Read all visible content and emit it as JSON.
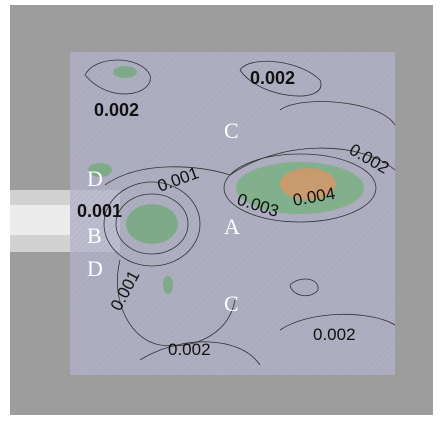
{
  "labels": [
    {
      "text": "0.002"
    },
    {
      "text": "0.002"
    },
    {
      "text": "C"
    },
    {
      "text": "D"
    },
    {
      "text": "0.001"
    },
    {
      "text": "B"
    },
    {
      "text": "D"
    },
    {
      "text": "0.001"
    },
    {
      "text": "0.001"
    },
    {
      "text": "0.003"
    },
    {
      "text": "0.004"
    },
    {
      "text": "0.002"
    },
    {
      "text": "A"
    },
    {
      "text": "C"
    },
    {
      "text": "0.002"
    },
    {
      "text": "0.002"
    }
  ]
}
